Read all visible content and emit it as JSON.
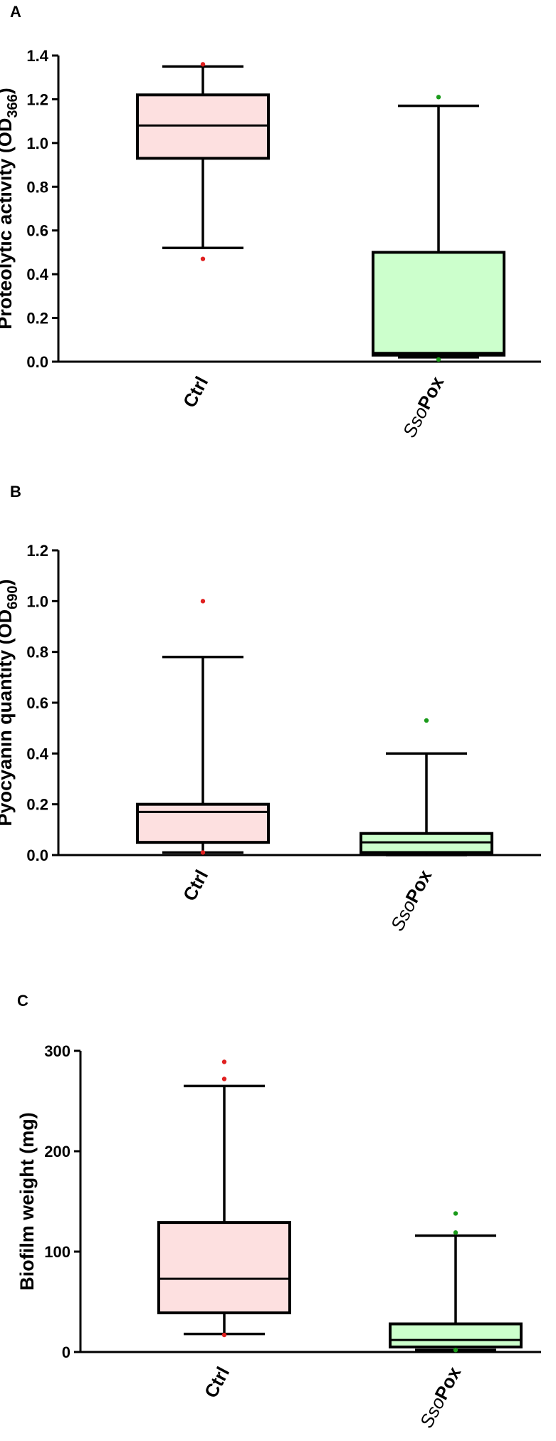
{
  "chart_data": [
    {
      "panel": "A",
      "type": "box",
      "ylabel": "Proteolytic activity (OD",
      "ylabel_sub": "366",
      "ylabel_end": ")",
      "ylim": [
        0,
        1.4
      ],
      "yticks": [
        0.0,
        0.2,
        0.4,
        0.6,
        0.8,
        1.0,
        1.2,
        1.4
      ],
      "tick_decimals": 1,
      "categories": [
        {
          "it": "",
          "b": "Ctrl"
        },
        {
          "it": "Sso",
          "b": "Pox"
        }
      ],
      "boxes": [
        {
          "min": 0.52,
          "q1": 0.93,
          "median": 1.08,
          "q3": 1.22,
          "max": 1.35,
          "outliers": [
            1.36,
            0.47
          ],
          "fill": "#fde0e0",
          "outlier_color": "#e02020"
        },
        {
          "min": 0.02,
          "q1": 0.03,
          "median": 0.04,
          "q3": 0.5,
          "max": 1.17,
          "outliers": [
            1.21,
            0.01
          ],
          "fill": "#ccffcc",
          "outlier_color": "#1a9a1a"
        }
      ]
    },
    {
      "panel": "B",
      "type": "box",
      "ylabel": "Pyocyanin quantity (OD",
      "ylabel_sub": "690",
      "ylabel_end": ")",
      "ylim": [
        0,
        1.2
      ],
      "yticks": [
        0.0,
        0.2,
        0.4,
        0.6,
        0.8,
        1.0,
        1.2
      ],
      "tick_decimals": 1,
      "categories": [
        {
          "it": "",
          "b": "Ctrl"
        },
        {
          "it": "Sso",
          "b": "Pox"
        }
      ],
      "boxes": [
        {
          "min": 0.01,
          "q1": 0.05,
          "median": 0.17,
          "q3": 0.2,
          "max": 0.78,
          "outliers": [
            1.0,
            0.01
          ],
          "fill": "#fde0e0",
          "outlier_color": "#e02020"
        },
        {
          "min": 0.0,
          "q1": 0.01,
          "median": 0.05,
          "q3": 0.085,
          "max": 0.4,
          "outliers": [
            0.53
          ],
          "fill": "#ccffcc",
          "outlier_color": "#1a9a1a"
        }
      ]
    },
    {
      "panel": "C",
      "type": "box",
      "ylabel": "Biofilm weight (mg)",
      "ylabel_sub": "",
      "ylabel_end": "",
      "ylim": [
        0,
        300
      ],
      "yticks": [
        0,
        100,
        200,
        300
      ],
      "tick_decimals": 0,
      "categories": [
        {
          "it": "",
          "b": "Ctrl"
        },
        {
          "it": "Sso",
          "b": "Pox"
        }
      ],
      "boxes": [
        {
          "min": 18,
          "q1": 39,
          "median": 73,
          "q3": 129,
          "max": 265,
          "outliers": [
            289,
            272,
            17
          ],
          "fill": "#fde0e0",
          "outlier_color": "#e02020"
        },
        {
          "min": 2,
          "q1": 5,
          "median": 12,
          "q3": 28,
          "max": 116,
          "outliers": [
            138,
            119,
            2
          ],
          "fill": "#ccffcc",
          "outlier_color": "#1a9a1a"
        }
      ]
    }
  ]
}
